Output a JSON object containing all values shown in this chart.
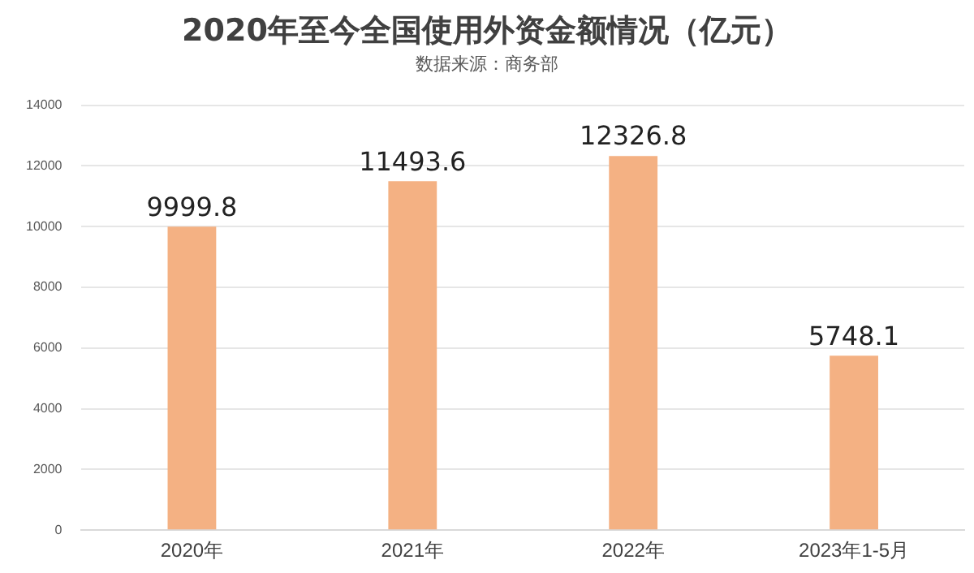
{
  "chart_data": {
    "type": "bar",
    "title": "2020年至今全国使用外资金额情况（亿元）",
    "subtitle": "数据来源：商务部",
    "categories": [
      "2020年",
      "2021年",
      "2022年",
      "2023年1-5月"
    ],
    "values": [
      9999.8,
      11493.6,
      12326.8,
      5748.1
    ],
    "color": "#f4b183",
    "ylim": [
      0,
      14000
    ],
    "yticks": [
      0,
      2000,
      4000,
      6000,
      8000,
      10000,
      12000,
      14000
    ],
    "grid": "y",
    "data_labels": true
  }
}
